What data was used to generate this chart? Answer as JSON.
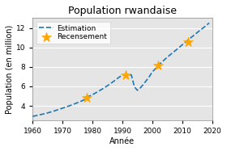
{
  "title": "Population rwandaise",
  "xlabel": "Année",
  "ylabel": "Population (en million)",
  "line_color": "#1f77b4",
  "line_style": "--",
  "marker_color": "orange",
  "marker_style": "*",
  "legend_entries": [
    "Estimation",
    "Recensement"
  ],
  "xlim": [
    1960,
    2020
  ],
  "ylim": [
    2.5,
    13.0
  ],
  "yticks": [
    4,
    6,
    8,
    10,
    12
  ],
  "xticks": [
    1960,
    1970,
    1980,
    1990,
    2000,
    2010,
    2020
  ],
  "census_years": [
    1978,
    1991,
    2002,
    2012
  ],
  "census_values": [
    4.83,
    7.15,
    8.13,
    10.52
  ],
  "curve_years": [
    1960,
    1961,
    1962,
    1963,
    1964,
    1965,
    1966,
    1967,
    1968,
    1969,
    1970,
    1971,
    1972,
    1973,
    1974,
    1975,
    1976,
    1977,
    1978,
    1979,
    1980,
    1981,
    1982,
    1983,
    1984,
    1985,
    1986,
    1987,
    1988,
    1989,
    1990,
    1991,
    1992,
    1993,
    1994,
    1995,
    1996,
    1997,
    1998,
    1999,
    2000,
    2001,
    2002,
    2003,
    2004,
    2005,
    2006,
    2007,
    2008,
    2009,
    2010,
    2011,
    2012,
    2013,
    2014,
    2015,
    2016,
    2017,
    2018,
    2019
  ],
  "curve_values": [
    2.93,
    2.99,
    3.06,
    3.13,
    3.2,
    3.28,
    3.37,
    3.46,
    3.56,
    3.66,
    3.77,
    3.87,
    3.98,
    4.09,
    4.21,
    4.33,
    4.46,
    4.59,
    4.83,
    5.01,
    5.16,
    5.32,
    5.5,
    5.68,
    5.87,
    6.07,
    6.28,
    6.5,
    6.73,
    6.97,
    7.15,
    7.15,
    7.2,
    7.17,
    5.97,
    5.6,
    5.85,
    6.2,
    6.6,
    7.0,
    7.49,
    7.8,
    8.13,
    8.44,
    8.72,
    9.0,
    9.25,
    9.5,
    9.75,
    10.0,
    10.27,
    10.52,
    10.78,
    11.03,
    11.27,
    11.52,
    11.77,
    12.0,
    12.25,
    12.51
  ],
  "bg_color": "#e5e5e5",
  "fig_bg_color": "#ffffff",
  "grid_color": "#ffffff",
  "title_fontsize": 9,
  "label_fontsize": 7,
  "tick_fontsize": 6.5,
  "legend_fontsize": 6.5,
  "star_size": 80,
  "linewidth": 1.2
}
